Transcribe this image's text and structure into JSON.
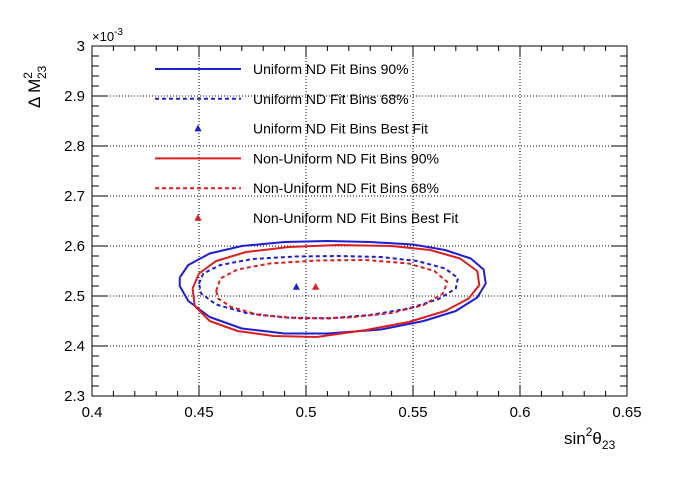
{
  "chart_data": {
    "type": "line",
    "xlabel": {
      "base": "sin",
      "sup": "2",
      "theta": "θ",
      "sub": "23"
    },
    "ylabel": {
      "delta": "Δ M",
      "sup": "2",
      "sub": "23"
    },
    "y_multiplier": {
      "base": "×10",
      "exp": "-3"
    },
    "xlim": [
      0.4,
      0.65
    ],
    "ylim": [
      2.3,
      3.0
    ],
    "xticks": [
      0.4,
      0.45,
      0.5,
      0.55,
      0.6,
      0.65
    ],
    "xtick_labels": [
      "0.4",
      "0.45",
      "0.5",
      "0.55",
      "0.6",
      "0.65"
    ],
    "yticks": [
      2.3,
      2.4,
      2.5,
      2.6,
      2.7,
      2.8,
      2.9,
      3.0
    ],
    "ytick_labels": [
      "2.3",
      "2.4",
      "2.5",
      "2.6",
      "2.7",
      "2.8",
      "2.9",
      "3"
    ],
    "grid": true,
    "legend_position": "top",
    "series": [
      {
        "name": "Uniform ND Fit Bins 90%",
        "color": "#1e1ed2",
        "style": "solid",
        "points": [
          [
            0.441,
            2.537
          ],
          [
            0.445,
            2.562
          ],
          [
            0.455,
            2.585
          ],
          [
            0.47,
            2.6
          ],
          [
            0.49,
            2.608
          ],
          [
            0.51,
            2.61
          ],
          [
            0.53,
            2.608
          ],
          [
            0.55,
            2.603
          ],
          [
            0.565,
            2.592
          ],
          [
            0.577,
            2.575
          ],
          [
            0.583,
            2.553
          ],
          [
            0.584,
            2.525
          ],
          [
            0.58,
            2.497
          ],
          [
            0.57,
            2.47
          ],
          [
            0.555,
            2.45
          ],
          [
            0.535,
            2.433
          ],
          [
            0.51,
            2.425
          ],
          [
            0.49,
            2.425
          ],
          [
            0.47,
            2.435
          ],
          [
            0.455,
            2.458
          ],
          [
            0.445,
            2.49
          ],
          [
            0.441,
            2.52
          ],
          [
            0.441,
            2.537
          ]
        ]
      },
      {
        "name": "Uniform ND Fit Bins 68%",
        "color": "#1e1ed2",
        "style": "dashed",
        "points": [
          [
            0.45,
            2.525
          ],
          [
            0.452,
            2.545
          ],
          [
            0.46,
            2.562
          ],
          [
            0.475,
            2.574
          ],
          [
            0.495,
            2.579
          ],
          [
            0.515,
            2.58
          ],
          [
            0.535,
            2.578
          ],
          [
            0.552,
            2.57
          ],
          [
            0.565,
            2.555
          ],
          [
            0.571,
            2.536
          ],
          [
            0.57,
            2.515
          ],
          [
            0.562,
            2.494
          ],
          [
            0.548,
            2.475
          ],
          [
            0.53,
            2.462
          ],
          [
            0.51,
            2.455
          ],
          [
            0.49,
            2.457
          ],
          [
            0.472,
            2.466
          ],
          [
            0.458,
            2.483
          ],
          [
            0.451,
            2.505
          ],
          [
            0.45,
            2.525
          ]
        ]
      },
      {
        "name": "Uniform ND Fit Bins Best Fit",
        "color": "#1e1ed2",
        "style": "marker",
        "points": [
          [
            0.4955,
            2.518
          ]
        ]
      },
      {
        "name": "Non-Uniform ND Fit Bins 90%",
        "color": "#dc1e1e",
        "style": "solid",
        "points": [
          [
            0.447,
            2.515
          ],
          [
            0.45,
            2.545
          ],
          [
            0.458,
            2.57
          ],
          [
            0.472,
            2.588
          ],
          [
            0.492,
            2.598
          ],
          [
            0.515,
            2.602
          ],
          [
            0.54,
            2.6
          ],
          [
            0.558,
            2.592
          ],
          [
            0.572,
            2.575
          ],
          [
            0.58,
            2.55
          ],
          [
            0.581,
            2.522
          ],
          [
            0.576,
            2.495
          ],
          [
            0.565,
            2.47
          ],
          [
            0.548,
            2.448
          ],
          [
            0.528,
            2.432
          ],
          [
            0.505,
            2.418
          ],
          [
            0.485,
            2.42
          ],
          [
            0.468,
            2.43
          ],
          [
            0.455,
            2.45
          ],
          [
            0.448,
            2.48
          ],
          [
            0.447,
            2.515
          ]
        ]
      },
      {
        "name": "Non-Uniform ND Fit Bins 68%",
        "color": "#dc1e1e",
        "style": "dashed",
        "points": [
          [
            0.458,
            2.51
          ],
          [
            0.46,
            2.535
          ],
          [
            0.468,
            2.553
          ],
          [
            0.483,
            2.565
          ],
          [
            0.505,
            2.571
          ],
          [
            0.528,
            2.572
          ],
          [
            0.548,
            2.565
          ],
          [
            0.56,
            2.55
          ],
          [
            0.566,
            2.528
          ],
          [
            0.564,
            2.505
          ],
          [
            0.555,
            2.482
          ],
          [
            0.54,
            2.466
          ],
          [
            0.52,
            2.457
          ],
          [
            0.498,
            2.455
          ],
          [
            0.478,
            2.462
          ],
          [
            0.465,
            2.478
          ],
          [
            0.459,
            2.495
          ],
          [
            0.458,
            2.51
          ]
        ]
      },
      {
        "name": "Non-Uniform ND Fit Bins Best Fit",
        "color": "#dc1e1e",
        "style": "marker",
        "points": [
          [
            0.5045,
            2.518
          ]
        ]
      }
    ]
  }
}
